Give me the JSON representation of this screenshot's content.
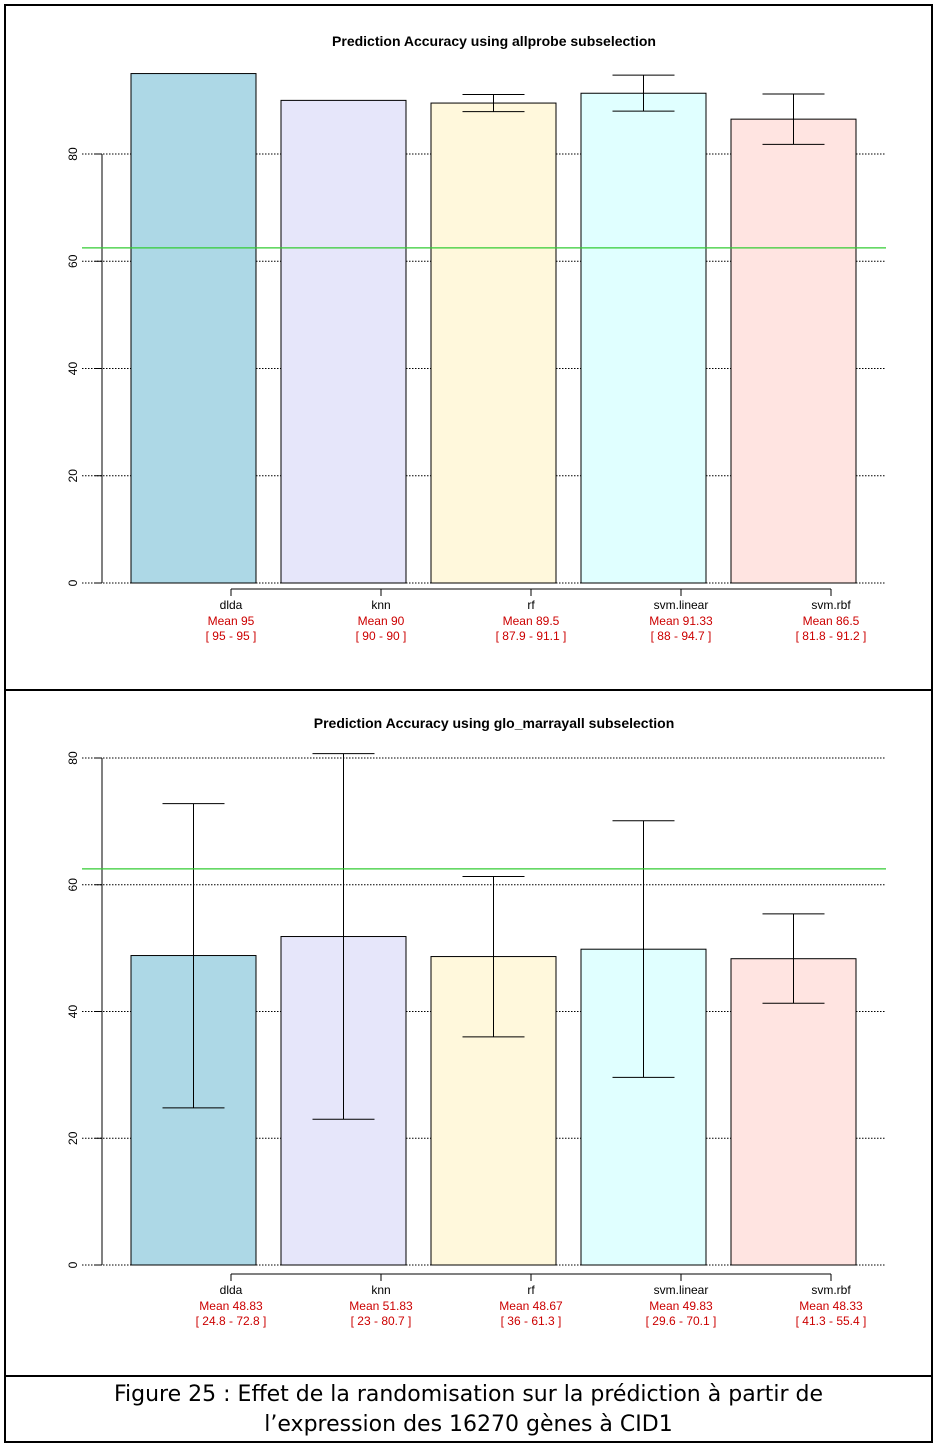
{
  "chart_data": [
    {
      "type": "bar",
      "title": "Prediction Accuracy using allprobe subselection",
      "categories": [
        "dlda",
        "knn",
        "rf",
        "svm.linear",
        "svm.rbf"
      ],
      "values": [
        95,
        90,
        89.5,
        91.33,
        86.5
      ],
      "error_low": [
        95,
        90,
        87.9,
        88,
        81.8
      ],
      "error_high": [
        95,
        90,
        91.1,
        94.7,
        91.2
      ],
      "mean_labels": [
        "Mean 95",
        "Mean 90",
        "Mean 89.5",
        "Mean 91.33",
        "Mean 86.5"
      ],
      "range_labels": [
        "[ 95 - 95 ]",
        "[ 90 - 90 ]",
        "[ 87.9 - 91.1 ]",
        "[ 88 - 94.7 ]",
        "[ 81.8 - 91.2 ]"
      ],
      "bar_colors": [
        "#add8e6",
        "#e6e6fa",
        "#fff8dc",
        "#e0ffff",
        "#ffe4e1"
      ],
      "reference_line": 62.5,
      "reference_color": "#33cc33",
      "yticks": [
        0,
        20,
        40,
        60,
        80
      ],
      "ytick_labels": [
        "0",
        "20",
        "40",
        "60",
        "80"
      ],
      "ylim": [
        0,
        100
      ],
      "grid": "horizontal dotted"
    },
    {
      "type": "bar",
      "title": "Prediction Accuracy using glo_marrayall subselection",
      "categories": [
        "dlda",
        "knn",
        "rf",
        "svm.linear",
        "svm.rbf"
      ],
      "values": [
        48.83,
        51.83,
        48.67,
        49.83,
        48.33
      ],
      "error_low": [
        24.8,
        23,
        36,
        29.6,
        41.3
      ],
      "error_high": [
        72.8,
        80.7,
        61.3,
        70.1,
        55.4
      ],
      "mean_labels": [
        "Mean 48.83",
        "Mean 51.83",
        "Mean 48.67",
        "Mean 49.83",
        "Mean 48.33"
      ],
      "range_labels": [
        "[ 24.8 - 72.8 ]",
        "[ 23 - 80.7 ]",
        "[ 36 - 61.3 ]",
        "[ 29.6 - 70.1 ]",
        "[ 41.3 - 55.4 ]"
      ],
      "bar_colors": [
        "#add8e6",
        "#e6e6fa",
        "#fff8dc",
        "#e0ffff",
        "#ffe4e1"
      ],
      "reference_line": 62.5,
      "reference_color": "#33cc33",
      "yticks": [
        0,
        20,
        40,
        60,
        80
      ],
      "ytick_labels": [
        "0",
        "20",
        "40",
        "60",
        "80"
      ],
      "ylim": [
        0,
        80
      ],
      "grid": "horizontal dotted"
    }
  ],
  "label_color": "#cc0000",
  "caption": {
    "line1": "Figure 25 : Effet de la randomisation sur la prédiction à partir de",
    "line2": "l’expression des 16270 gènes à CID1"
  }
}
